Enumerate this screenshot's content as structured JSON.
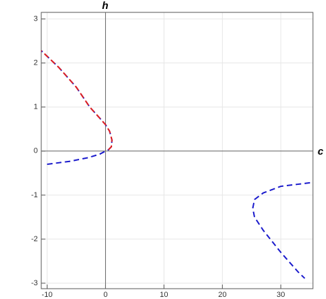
{
  "chart_data": {
    "type": "line",
    "x_label": "c",
    "y_label": "h",
    "xlim": [
      -11,
      35.5
    ],
    "ylim": [
      -3.125,
      3.15
    ],
    "xticks": [
      -10,
      0,
      10,
      20,
      30
    ],
    "yticks": [
      -3,
      -2,
      -1,
      0,
      1,
      2,
      3
    ],
    "grid": true,
    "series": [
      {
        "color": "#1a1acc",
        "dashed": true,
        "x": [
          -10,
          -6,
          -3,
          -1,
          0,
          0.5,
          1.0,
          1.1,
          0.7,
          0,
          -1,
          -2.7,
          -5,
          -8,
          -11
        ],
        "values": [
          -0.3,
          -0.23,
          -0.15,
          -0.07,
          0,
          0.03,
          0.1,
          0.25,
          0.45,
          0.6,
          0.75,
          1.0,
          1.45,
          1.9,
          2.28
        ]
      },
      {
        "color": "#e02020",
        "dashed": true,
        "x": [
          0.5,
          1.0,
          1.1,
          0.7,
          0,
          -1,
          -2.7,
          -5,
          -8,
          -11
        ],
        "values": [
          0.03,
          0.1,
          0.25,
          0.45,
          0.6,
          0.75,
          1.0,
          1.45,
          1.9,
          2.28
        ]
      },
      {
        "color": "#1a1acc",
        "dashed": true,
        "x": [
          35,
          30,
          27,
          25.5,
          25.2,
          25.5,
          27,
          30,
          33,
          34.1
        ],
        "values": [
          -0.72,
          -0.8,
          -0.95,
          -1.1,
          -1.3,
          -1.5,
          -1.8,
          -2.3,
          -2.75,
          -2.89
        ]
      }
    ]
  }
}
